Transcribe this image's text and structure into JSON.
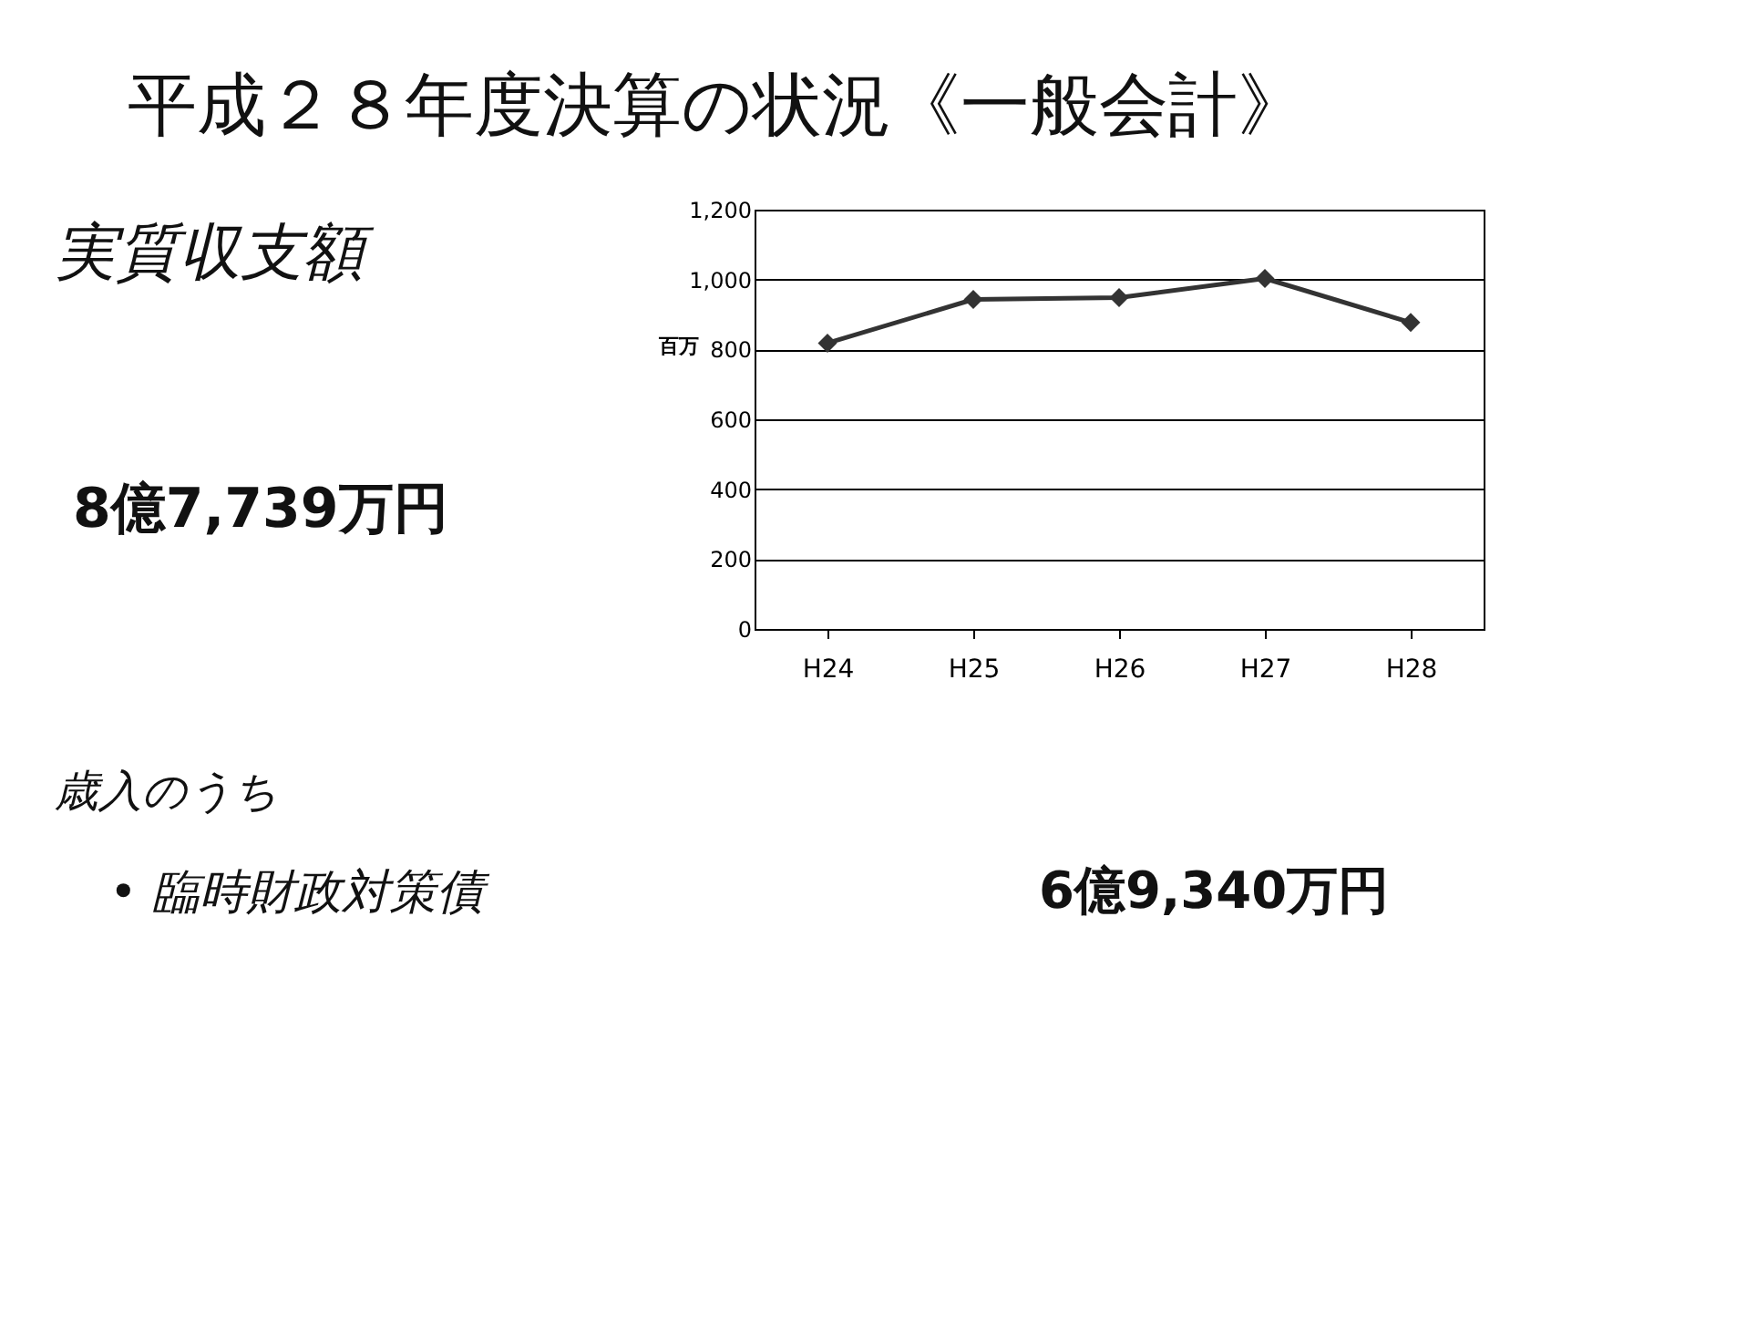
{
  "chart_data": {
    "type": "line",
    "title": "平成２８年度決算の状況《一般会計》",
    "ylabel": "百万",
    "categories": [
      "H24",
      "H25",
      "H26",
      "H27",
      "H28"
    ],
    "series": [
      {
        "color": "#333333",
        "values": [
          818,
          943,
          948,
          1003,
          877
        ]
      }
    ],
    "ylim": [
      0,
      1200
    ],
    "yticks": [
      0,
      200,
      400,
      600,
      800,
      {
        "value": 1000,
        "label": "1,000"
      },
      {
        "value": 1200,
        "label": "1,200"
      }
    ],
    "grid": "y",
    "marker": "diamond",
    "line_style": "solid",
    "annotations": [
      "実質収支額",
      "8億7,739万円",
      "歳入のうち",
      "• 臨時財政対策債",
      "6億9,340万円"
    ]
  }
}
